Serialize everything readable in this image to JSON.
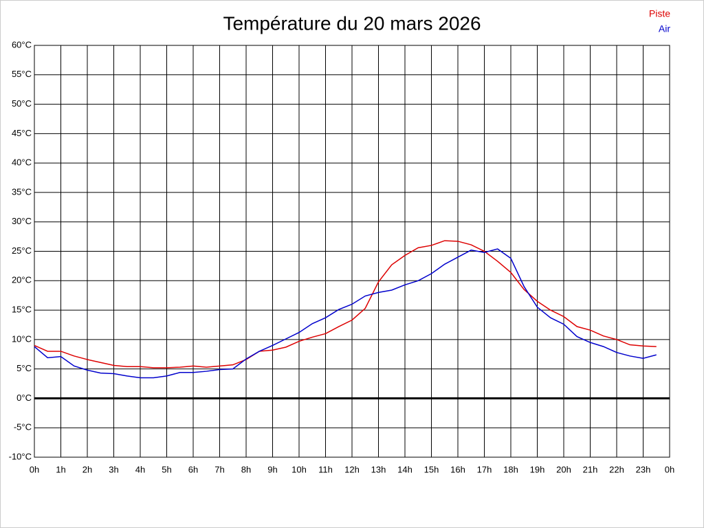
{
  "chart_data": {
    "type": "line",
    "title": "Température du 20 mars 2026",
    "x": [
      0,
      0.5,
      1,
      1.5,
      2,
      2.5,
      3,
      3.5,
      4,
      4.5,
      5,
      5.5,
      6,
      6.5,
      7,
      7.5,
      8,
      8.5,
      9,
      9.5,
      10,
      10.5,
      11,
      11.5,
      12,
      12.5,
      13,
      13.5,
      14,
      14.5,
      15,
      15.5,
      16,
      16.5,
      17,
      17.5,
      18,
      18.5,
      19,
      19.5,
      20,
      20.5,
      21,
      21.5,
      22,
      22.5,
      23,
      23.5
    ],
    "series": [
      {
        "name": "Piste",
        "color": "#dd0000",
        "values": [
          9.0,
          8.0,
          8.0,
          7.2,
          6.6,
          6.1,
          5.6,
          5.4,
          5.4,
          5.2,
          5.2,
          5.3,
          5.5,
          5.3,
          5.5,
          5.7,
          6.6,
          8.0,
          8.2,
          8.7,
          9.7,
          10.4,
          11.0,
          12.2,
          13.3,
          15.3,
          19.8,
          22.7,
          24.3,
          25.6,
          26.0,
          26.8,
          26.7,
          26.1,
          25.0,
          23.3,
          21.4,
          18.5,
          16.5,
          15.0,
          13.9,
          12.2,
          11.6,
          10.6,
          10.0,
          9.1,
          8.9,
          8.8
        ]
      },
      {
        "name": "Air",
        "color": "#0000cc",
        "values": [
          8.8,
          6.9,
          7.1,
          5.5,
          4.8,
          4.3,
          4.2,
          3.8,
          3.5,
          3.5,
          3.8,
          4.4,
          4.4,
          4.6,
          4.9,
          5.0,
          6.7,
          8.0,
          9.0,
          10.1,
          11.2,
          12.7,
          13.7,
          15.1,
          16.0,
          17.4,
          18.0,
          18.4,
          19.3,
          20.0,
          21.2,
          22.8,
          24.0,
          25.2,
          24.8,
          25.4,
          23.8,
          19.0,
          15.5,
          13.7,
          12.6,
          10.5,
          9.5,
          8.8,
          7.8,
          7.2,
          6.8,
          7.4
        ]
      }
    ],
    "xlim": [
      0,
      24
    ],
    "xticks": [
      {
        "value": 0,
        "label": "0h"
      },
      {
        "value": 1,
        "label": "1h"
      },
      {
        "value": 2,
        "label": "2h"
      },
      {
        "value": 3,
        "label": "3h"
      },
      {
        "value": 4,
        "label": "4h"
      },
      {
        "value": 5,
        "label": "5h"
      },
      {
        "value": 6,
        "label": "6h"
      },
      {
        "value": 7,
        "label": "7h"
      },
      {
        "value": 8,
        "label": "8h"
      },
      {
        "value": 9,
        "label": "9h"
      },
      {
        "value": 10,
        "label": "10h"
      },
      {
        "value": 11,
        "label": "11h"
      },
      {
        "value": 12,
        "label": "12h"
      },
      {
        "value": 13,
        "label": "13h"
      },
      {
        "value": 14,
        "label": "14h"
      },
      {
        "value": 15,
        "label": "15h"
      },
      {
        "value": 16,
        "label": "16h"
      },
      {
        "value": 17,
        "label": "17h"
      },
      {
        "value": 18,
        "label": "18h"
      },
      {
        "value": 19,
        "label": "19h"
      },
      {
        "value": 20,
        "label": "20h"
      },
      {
        "value": 21,
        "label": "21h"
      },
      {
        "value": 22,
        "label": "22h"
      },
      {
        "value": 23,
        "label": "23h"
      },
      {
        "value": 24,
        "label": "0h"
      }
    ],
    "ylim": [
      -10,
      60
    ],
    "yticks": [
      {
        "value": -10,
        "label": "-10°C"
      },
      {
        "value": -5,
        "label": "-5°C"
      },
      {
        "value": 0,
        "label": "0°C"
      },
      {
        "value": 5,
        "label": "5°C"
      },
      {
        "value": 10,
        "label": "10°C"
      },
      {
        "value": 15,
        "label": "15°C"
      },
      {
        "value": 20,
        "label": "20°C"
      },
      {
        "value": 25,
        "label": "25°C"
      },
      {
        "value": 30,
        "label": "30°C"
      },
      {
        "value": 35,
        "label": "35°C"
      },
      {
        "value": 40,
        "label": "40°C"
      },
      {
        "value": 45,
        "label": "45°C"
      },
      {
        "value": 50,
        "label": "50°C"
      },
      {
        "value": 55,
        "label": "55°C"
      },
      {
        "value": 60,
        "label": "60°C"
      }
    ],
    "grid": true,
    "legend": "top-right"
  }
}
